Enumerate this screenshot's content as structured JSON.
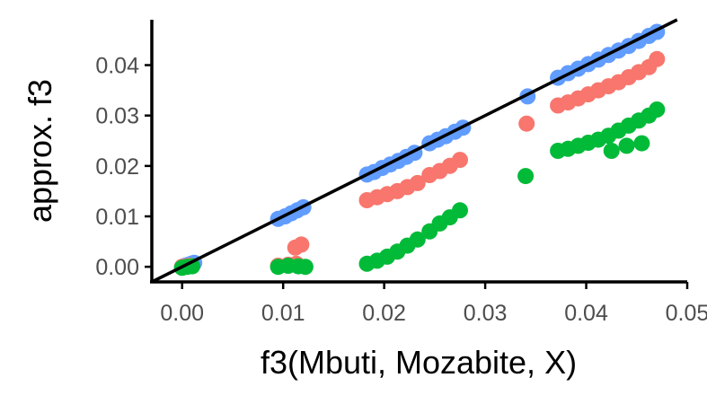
{
  "chart_data": {
    "type": "scatter",
    "title": "",
    "xlabel": "f3(Mbuti, Mozabite, X)",
    "ylabel": "approx. f3",
    "xlim": [
      -0.003,
      0.05
    ],
    "ylim": [
      -0.003,
      0.049
    ],
    "x_ticks": [
      0.0,
      0.01,
      0.02,
      0.03,
      0.04,
      0.05
    ],
    "x_tick_labels": [
      "0.00",
      "0.01",
      "0.02",
      "0.03",
      "0.04",
      "0.05"
    ],
    "y_ticks": [
      0.0,
      0.01,
      0.02,
      0.03,
      0.04
    ],
    "y_tick_labels": [
      "0.00",
      "0.01",
      "0.02",
      "0.03",
      "0.04"
    ],
    "grid": false,
    "legend": "none",
    "reference_line": {
      "slope": 1,
      "intercept": 0,
      "color": "#000000"
    },
    "series": [
      {
        "color": "#619CFF",
        "points": [
          [
            0.0,
            0.0
          ],
          [
            0.0003,
            0.0002
          ],
          [
            0.0006,
            0.0004
          ],
          [
            0.0009,
            0.0006
          ],
          [
            0.0012,
            0.0008
          ],
          [
            0.0095,
            0.0095
          ],
          [
            0.0102,
            0.01
          ],
          [
            0.0108,
            0.0106
          ],
          [
            0.0114,
            0.0112
          ],
          [
            0.012,
            0.0118
          ],
          [
            0.0183,
            0.0183
          ],
          [
            0.019,
            0.0188
          ],
          [
            0.0198,
            0.0196
          ],
          [
            0.0206,
            0.0203
          ],
          [
            0.0214,
            0.021
          ],
          [
            0.0222,
            0.0218
          ],
          [
            0.023,
            0.0226
          ],
          [
            0.0245,
            0.0245
          ],
          [
            0.0253,
            0.0252
          ],
          [
            0.0261,
            0.0259
          ],
          [
            0.027,
            0.0268
          ],
          [
            0.0278,
            0.0276
          ],
          [
            0.0342,
            0.0338
          ],
          [
            0.0372,
            0.0375
          ],
          [
            0.0382,
            0.0384
          ],
          [
            0.0392,
            0.0393
          ],
          [
            0.0402,
            0.0402
          ],
          [
            0.0412,
            0.0411
          ],
          [
            0.0422,
            0.042
          ],
          [
            0.0432,
            0.0429
          ],
          [
            0.0442,
            0.0438
          ],
          [
            0.0452,
            0.0448
          ],
          [
            0.0462,
            0.0458
          ],
          [
            0.047,
            0.0466
          ]
        ]
      },
      {
        "color": "#F8766D",
        "points": [
          [
            0.0,
            0.0
          ],
          [
            0.0004,
            0.0001
          ],
          [
            0.0008,
            0.0002
          ],
          [
            0.0095,
            0.0002
          ],
          [
            0.0105,
            0.0004
          ],
          [
            0.0113,
            0.0006
          ],
          [
            0.0112,
            0.0038
          ],
          [
            0.0118,
            0.0044
          ],
          [
            0.0183,
            0.0132
          ],
          [
            0.0193,
            0.0138
          ],
          [
            0.0203,
            0.0144
          ],
          [
            0.0213,
            0.015
          ],
          [
            0.0223,
            0.0158
          ],
          [
            0.0233,
            0.0166
          ],
          [
            0.0245,
            0.0182
          ],
          [
            0.0255,
            0.019
          ],
          [
            0.0265,
            0.02
          ],
          [
            0.0275,
            0.0212
          ],
          [
            0.0341,
            0.0284
          ],
          [
            0.0372,
            0.032
          ],
          [
            0.0382,
            0.0326
          ],
          [
            0.0392,
            0.0334
          ],
          [
            0.0402,
            0.0342
          ],
          [
            0.0412,
            0.035
          ],
          [
            0.0422,
            0.0358
          ],
          [
            0.0432,
            0.0366
          ],
          [
            0.0442,
            0.0376
          ],
          [
            0.0452,
            0.0386
          ],
          [
            0.0462,
            0.0396
          ],
          [
            0.047,
            0.0412
          ]
        ]
      },
      {
        "color": "#00BA38",
        "points": [
          [
            0.0,
            -0.0002
          ],
          [
            0.0005,
            0.0
          ],
          [
            0.001,
            0.0001
          ],
          [
            0.0095,
            0.0
          ],
          [
            0.0105,
            0.0002
          ],
          [
            0.0115,
            0.0001
          ],
          [
            0.0122,
            0.0
          ],
          [
            0.0183,
            0.0006
          ],
          [
            0.0193,
            0.0012
          ],
          [
            0.0203,
            0.002
          ],
          [
            0.0213,
            0.003
          ],
          [
            0.0223,
            0.0042
          ],
          [
            0.0233,
            0.0054
          ],
          [
            0.0245,
            0.007
          ],
          [
            0.0255,
            0.0086
          ],
          [
            0.0265,
            0.0098
          ],
          [
            0.0275,
            0.0112
          ],
          [
            0.034,
            0.018
          ],
          [
            0.0372,
            0.023
          ],
          [
            0.0382,
            0.0234
          ],
          [
            0.0392,
            0.024
          ],
          [
            0.0402,
            0.0246
          ],
          [
            0.0412,
            0.0252
          ],
          [
            0.0422,
            0.026
          ],
          [
            0.0432,
            0.027
          ],
          [
            0.0442,
            0.028
          ],
          [
            0.0452,
            0.029
          ],
          [
            0.0462,
            0.03
          ],
          [
            0.047,
            0.0312
          ],
          [
            0.0425,
            0.023
          ],
          [
            0.044,
            0.024
          ],
          [
            0.0455,
            0.0245
          ]
        ]
      }
    ]
  }
}
